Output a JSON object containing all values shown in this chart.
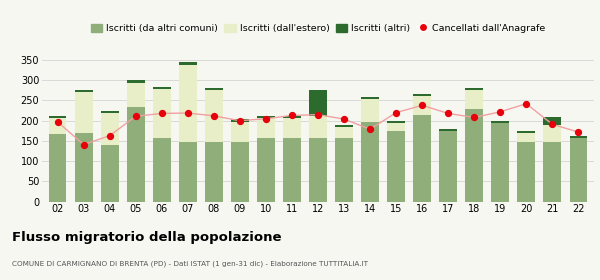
{
  "years": [
    "02",
    "03",
    "04",
    "05",
    "06",
    "07",
    "08",
    "09",
    "10",
    "11",
    "12",
    "13",
    "14",
    "15",
    "16",
    "17",
    "18",
    "19",
    "20",
    "21",
    "22"
  ],
  "iscritti_comuni": [
    168,
    170,
    140,
    235,
    158,
    148,
    148,
    148,
    157,
    157,
    157,
    157,
    198,
    175,
    215,
    175,
    230,
    195,
    147,
    148,
    157
  ],
  "iscritti_estero": [
    38,
    100,
    78,
    58,
    120,
    190,
    128,
    50,
    50,
    50,
    55,
    28,
    55,
    20,
    45,
    0,
    45,
    0,
    22,
    42,
    0
  ],
  "iscritti_altri": [
    5,
    5,
    5,
    8,
    5,
    8,
    5,
    5,
    5,
    5,
    63,
    5,
    5,
    5,
    5,
    5,
    5,
    5,
    5,
    18,
    5
  ],
  "cancellati": [
    197,
    141,
    163,
    211,
    218,
    219,
    212,
    200,
    205,
    213,
    215,
    204,
    179,
    220,
    238,
    218,
    208,
    222,
    242,
    191,
    172
  ],
  "color_comuni": "#8fae7a",
  "color_estero": "#e8eec8",
  "color_altri": "#2d6a2d",
  "color_cancellati": "#e8000a",
  "color_line": "#f0a0a0",
  "ylim": [
    0,
    360
  ],
  "yticks": [
    0,
    50,
    100,
    150,
    200,
    250,
    300,
    350
  ],
  "title": "Flusso migratorio della popolazione",
  "subtitle": "COMUNE DI CARMIGNANO DI BRENTA (PD) - Dati ISTAT (1 gen-31 dic) - Elaborazione TUTTITALIA.IT",
  "legend_labels": [
    "Iscritti (da altri comuni)",
    "Iscritti (dall'estero)",
    "Iscritti (altri)",
    "Cancellati dall'Anagrafe"
  ],
  "bg_color": "#f7f7f2"
}
